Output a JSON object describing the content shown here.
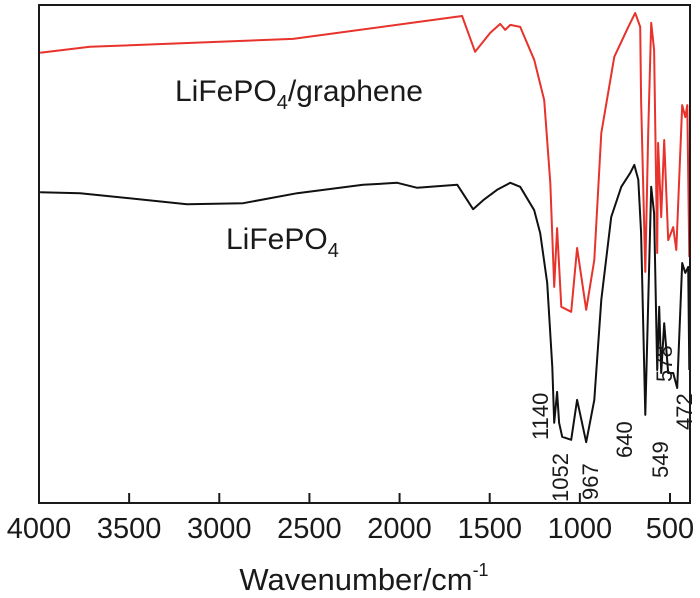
{
  "chart_data": {
    "type": "line",
    "title": "",
    "xlabel": "Wavenumber/cm",
    "xlabel_superscript": "-1",
    "ylabel": "",
    "xlim": [
      4000,
      389
    ],
    "ylim": [
      0,
      100
    ],
    "x_reversed": true,
    "grid": false,
    "xticks": [
      4000,
      3500,
      3000,
      2500,
      2000,
      1500,
      1000,
      500
    ],
    "xtick_labels": [
      "4000",
      "3500",
      "3000",
      "2500",
      "2000",
      "1500",
      "1000",
      "500"
    ],
    "series": [
      {
        "name": "LiFePO4/graphene",
        "label_main": "LiFePO",
        "label_sub": "4",
        "label_tail": "/graphene",
        "color": "#e8322c",
        "x": [
          3994,
          3717,
          2591,
          1653,
          1581,
          1497,
          1442,
          1414,
          1386,
          1331,
          1253,
          1198,
          1164,
          1142,
          1126,
          1103,
          1048,
          1015,
          965,
          920,
          881,
          809,
          731,
          693,
          665,
          660,
          637,
          621,
          604,
          588,
          571,
          566,
          549,
          532,
          510,
          482,
          465,
          432,
          415,
          404,
          393
        ],
        "y": [
          90.4,
          91.6,
          93.2,
          97.8,
          90.6,
          94.4,
          96.2,
          95.0,
          96.0,
          95.6,
          89.0,
          80.9,
          64.3,
          43.4,
          55.2,
          39.4,
          38.4,
          51.2,
          38.8,
          48.8,
          74.3,
          89.6,
          95.6,
          98.4,
          95.6,
          80.9,
          46.4,
          74.3,
          96.4,
          91.0,
          50.2,
          72.3,
          57.4,
          72.9,
          52.8,
          55.4,
          50.8,
          79.9,
          77.5,
          79.9,
          49.4
        ]
      },
      {
        "name": "LiFePO4",
        "label_main": "LiFePO",
        "label_sub": "4",
        "label_tail": "",
        "color": "#111111",
        "x": [
          3994,
          3772,
          3179,
          2868,
          2568,
          2202,
          2013,
          1902,
          1680,
          1592,
          1536,
          1459,
          1386,
          1331,
          1253,
          1220,
          1181,
          1153,
          1142,
          1126,
          1115,
          1098,
          1048,
          1015,
          965,
          920,
          881,
          826,
          770,
          720,
          698,
          676,
          660,
          637,
          604,
          588,
          571,
          560,
          549,
          532,
          510,
          482,
          460,
          432,
          415,
          399,
          393
        ],
        "y": [
          62.4,
          62.2,
          60.0,
          60.2,
          62.2,
          63.9,
          64.3,
          63.3,
          63.9,
          59.0,
          60.8,
          62.9,
          64.3,
          63.5,
          58.8,
          54.2,
          44.2,
          27.3,
          16.1,
          22.3,
          16.1,
          13.3,
          12.7,
          20.7,
          12.2,
          20.7,
          40.8,
          57.4,
          63.5,
          66.3,
          67.9,
          64.9,
          54.2,
          17.7,
          63.5,
          58.2,
          26.7,
          39.4,
          26.1,
          36.1,
          26.1,
          26.1,
          23.1,
          48.2,
          46.2,
          47.4,
          26.7
        ]
      }
    ],
    "annotations": [
      {
        "text": "1140",
        "x": 1140,
        "level": 12
      },
      {
        "text": "1052",
        "x": 1052,
        "level": 0
      },
      {
        "text": "967",
        "x": 967,
        "level": 4
      },
      {
        "text": "640",
        "x": 640,
        "level": 9
      },
      {
        "text": "549",
        "x": 549,
        "level": 5
      },
      {
        "text": "578",
        "x": 578,
        "level": 21
      },
      {
        "text": "472",
        "x": 472,
        "level": 15
      }
    ]
  }
}
